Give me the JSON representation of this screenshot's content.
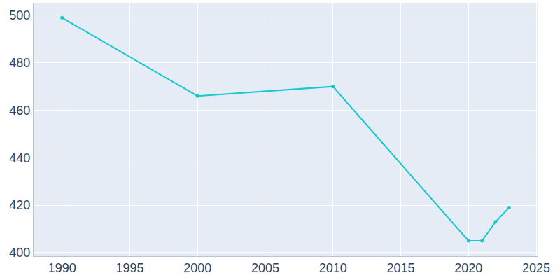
{
  "chart_data": {
    "type": "line",
    "x": [
      1990,
      2000,
      2010,
      2020,
      2021,
      2022,
      2023
    ],
    "values": [
      499,
      466,
      470,
      405,
      405,
      413,
      419
    ],
    "color": "#14c9c9",
    "marker": "circle",
    "xlim": [
      1987.9,
      2025.1
    ],
    "xticks": [
      1990,
      1995,
      2000,
      2005,
      2010,
      2015,
      2020,
      2025
    ],
    "ylim": [
      398.5,
      505
    ],
    "yticks": [
      400,
      420,
      440,
      460,
      480,
      500
    ],
    "grid": true
  }
}
